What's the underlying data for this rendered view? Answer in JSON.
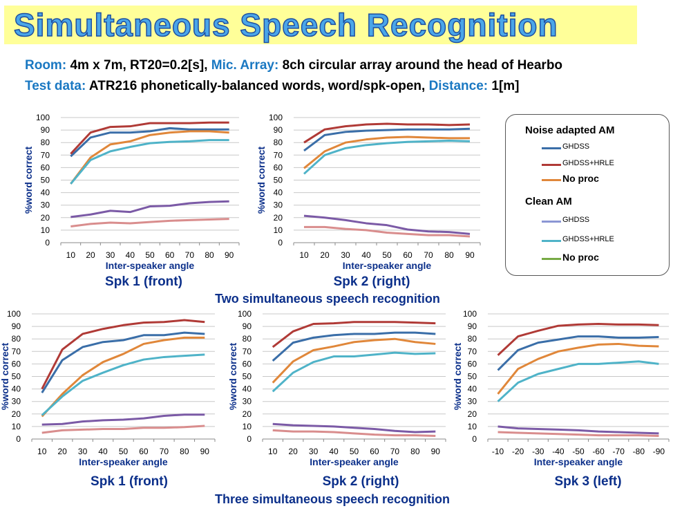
{
  "title": "Simultaneous Speech Recognition",
  "info": {
    "room_label": "Room:",
    "room_value": "4m x 7m, RT20=0.2[s],",
    "mic_label": "Mic. Array:",
    "mic_value": "8ch circular array around the head of Hearbo",
    "test_label": "Test data:",
    "test_value": "ATR216 phonetically-balanced words, word/spk-open,",
    "distance_label": "Distance:",
    "distance_value": "1[m]"
  },
  "section_titles": {
    "two": "Two simultaneous speech recognition",
    "three": "Three simultaneous speech recognition"
  },
  "legend": {
    "header_adapted": "Noise adapted AM",
    "header_clean": "Clean AM",
    "items": [
      {
        "label": "GHDSS",
        "color": "#3a6ea8"
      },
      {
        "label": "GHDSS+HRLE",
        "color": "#b03a36"
      },
      {
        "label": "No proc",
        "color": "#e0873a"
      },
      {
        "label": "GHDSS",
        "color": "#8b96d4"
      },
      {
        "label": "GHDSS+HRLE",
        "color": "#4fb3c8"
      },
      {
        "label": "No proc",
        "color": "#77aa44"
      }
    ]
  },
  "chart_data": [
    {
      "type": "line",
      "title": "Spk 1 (front)",
      "xlabel": "Inter-speaker angle",
      "ylabel": "%word correct",
      "ylim": [
        0,
        100
      ],
      "yticks": [
        "0",
        "10",
        "20",
        "30",
        "40",
        "50",
        "60",
        "70",
        "80",
        "90",
        "100"
      ],
      "x": [
        "10",
        "20",
        "30",
        "40",
        "50",
        "60",
        "70",
        "80",
        "90"
      ],
      "series": [
        {
          "color": "#3a6ea8",
          "values": [
            69,
            84,
            88,
            88,
            89,
            91.5,
            90.5,
            90.5,
            90.5
          ]
        },
        {
          "color": "#b03a36",
          "values": [
            71,
            88,
            92.5,
            93,
            95.5,
            95.5,
            95.5,
            96,
            96
          ]
        },
        {
          "color": "#e0873a",
          "values": [
            47,
            68,
            78.5,
            81,
            86,
            88,
            89,
            89,
            88
          ]
        },
        {
          "color": "#4fb3c8",
          "values": [
            47,
            66,
            73,
            76.5,
            79.5,
            80.5,
            81,
            82,
            82
          ]
        },
        {
          "color": "#7b5aa6",
          "values": [
            20.5,
            22.5,
            25.5,
            24.5,
            29,
            29.5,
            31.5,
            32.5,
            33
          ]
        },
        {
          "color": "#d98d8d",
          "values": [
            13,
            15,
            16,
            15.5,
            16.5,
            17.5,
            18,
            18.5,
            19
          ]
        }
      ]
    },
    {
      "type": "line",
      "title": "Spk 2 (right)",
      "xlabel": "Inter-speaker angle",
      "ylabel": "%word correct",
      "ylim": [
        0,
        100
      ],
      "yticks": [
        "0",
        "10",
        "20",
        "30",
        "40",
        "50",
        "60",
        "70",
        "80",
        "90",
        "100"
      ],
      "x": [
        "10",
        "20",
        "30",
        "40",
        "50",
        "60",
        "70",
        "80",
        "90"
      ],
      "series": [
        {
          "color": "#3a6ea8",
          "values": [
            73.5,
            86,
            88.5,
            89.5,
            90,
            90.5,
            90.5,
            90.5,
            91
          ]
        },
        {
          "color": "#b03a36",
          "values": [
            80,
            90.5,
            93,
            94.5,
            95,
            94.5,
            94.5,
            94,
            94.5
          ]
        },
        {
          "color": "#e0873a",
          "values": [
            59.5,
            73,
            80,
            82.5,
            84,
            84.5,
            84,
            83.5,
            83.5
          ]
        },
        {
          "color": "#4fb3c8",
          "values": [
            55,
            70,
            75.5,
            78,
            79.5,
            80.5,
            81,
            81.5,
            81
          ]
        },
        {
          "color": "#7b5aa6",
          "values": [
            21.5,
            20,
            18,
            15.5,
            14,
            10.5,
            9,
            8.5,
            7
          ]
        },
        {
          "color": "#d98d8d",
          "values": [
            12.5,
            12.5,
            11,
            10,
            8,
            7,
            6,
            6,
            5
          ]
        }
      ]
    },
    {
      "type": "line",
      "title": "Spk 1 (front)",
      "xlabel": "Inter-speaker angle",
      "ylabel": "%word correct",
      "ylim": [
        0,
        100
      ],
      "yticks": [
        "0",
        "10",
        "20",
        "30",
        "40",
        "50",
        "60",
        "70",
        "80",
        "90",
        "100"
      ],
      "x": [
        "10",
        "20",
        "30",
        "40",
        "50",
        "60",
        "70",
        "80",
        "90"
      ],
      "series": [
        {
          "color": "#3a6ea8",
          "values": [
            37,
            63,
            73.5,
            77.5,
            79,
            83,
            83,
            85,
            84
          ]
        },
        {
          "color": "#b03a36",
          "values": [
            40,
            71.5,
            84,
            88,
            91,
            93,
            93.5,
            95,
            93.5
          ]
        },
        {
          "color": "#e0873a",
          "values": [
            18,
            36,
            51,
            61.5,
            68,
            76,
            79,
            81,
            81
          ]
        },
        {
          "color": "#4fb3c8",
          "values": [
            19,
            34,
            46.5,
            53,
            59,
            63.5,
            65.5,
            66.5,
            67.5
          ]
        },
        {
          "color": "#7b5aa6",
          "values": [
            11.5,
            12,
            14,
            15,
            15.5,
            16.5,
            18.5,
            19.5,
            19.5
          ]
        },
        {
          "color": "#d98d8d",
          "values": [
            5,
            7,
            7.5,
            8,
            8,
            9,
            9,
            9.5,
            10.5
          ]
        }
      ]
    },
    {
      "type": "line",
      "title": "Spk 2 (right)",
      "xlabel": "Inter-speaker angle",
      "ylabel": "%word correct",
      "ylim": [
        0,
        100
      ],
      "yticks": [
        "0",
        "10",
        "20",
        "30",
        "40",
        "50",
        "60",
        "70",
        "80",
        "90",
        "100"
      ],
      "x": [
        "10",
        "20",
        "30",
        "40",
        "50",
        "60",
        "70",
        "80",
        "90"
      ],
      "series": [
        {
          "color": "#3a6ea8",
          "values": [
            62.5,
            77,
            81,
            83,
            84,
            84,
            85,
            85,
            84
          ]
        },
        {
          "color": "#b03a36",
          "values": [
            73.5,
            86,
            92,
            92.5,
            93.5,
            93.5,
            93.5,
            93,
            92.5
          ]
        },
        {
          "color": "#e0873a",
          "values": [
            45,
            62,
            71,
            74,
            77.5,
            79,
            80,
            77.5,
            76
          ]
        },
        {
          "color": "#4fb3c8",
          "values": [
            38,
            53,
            61.5,
            66,
            66,
            67.5,
            69,
            68,
            68.5
          ]
        },
        {
          "color": "#7b5aa6",
          "values": [
            12,
            11,
            10.5,
            10,
            9,
            8,
            6.5,
            5.5,
            6
          ]
        },
        {
          "color": "#d98d8d",
          "values": [
            7,
            6,
            6,
            5.5,
            4.5,
            3.5,
            3,
            3,
            2.5
          ]
        }
      ]
    },
    {
      "type": "line",
      "title": "Spk 3 (left)",
      "xlabel": "Inter-speaker angle",
      "ylabel": "%word correct",
      "ylim": [
        0,
        100
      ],
      "yticks": [
        "0",
        "10",
        "20",
        "30",
        "40",
        "50",
        "60",
        "70",
        "80",
        "90",
        "100"
      ],
      "x": [
        "-10",
        "-20",
        "-30",
        "-40",
        "-50",
        "-60",
        "-70",
        "-80",
        "-90"
      ],
      "series": [
        {
          "color": "#3a6ea8",
          "values": [
            55,
            71,
            77,
            79.5,
            82,
            82,
            81,
            81,
            81.5
          ]
        },
        {
          "color": "#b03a36",
          "values": [
            67,
            82,
            86.5,
            90.5,
            91.5,
            92,
            91.5,
            91.5,
            91
          ]
        },
        {
          "color": "#e0873a",
          "values": [
            36,
            56,
            64,
            70,
            73,
            75.5,
            76,
            74.5,
            74
          ]
        },
        {
          "color": "#4fb3c8",
          "values": [
            30,
            45,
            52,
            56,
            60,
            60,
            61,
            62,
            60
          ]
        },
        {
          "color": "#7b5aa6",
          "values": [
            10,
            8.5,
            8,
            7.5,
            7,
            6,
            5.5,
            5,
            4.5
          ]
        },
        {
          "color": "#d98d8d",
          "values": [
            5.5,
            5,
            4.5,
            4,
            3.5,
            3,
            3,
            3,
            2.5
          ]
        }
      ]
    }
  ]
}
